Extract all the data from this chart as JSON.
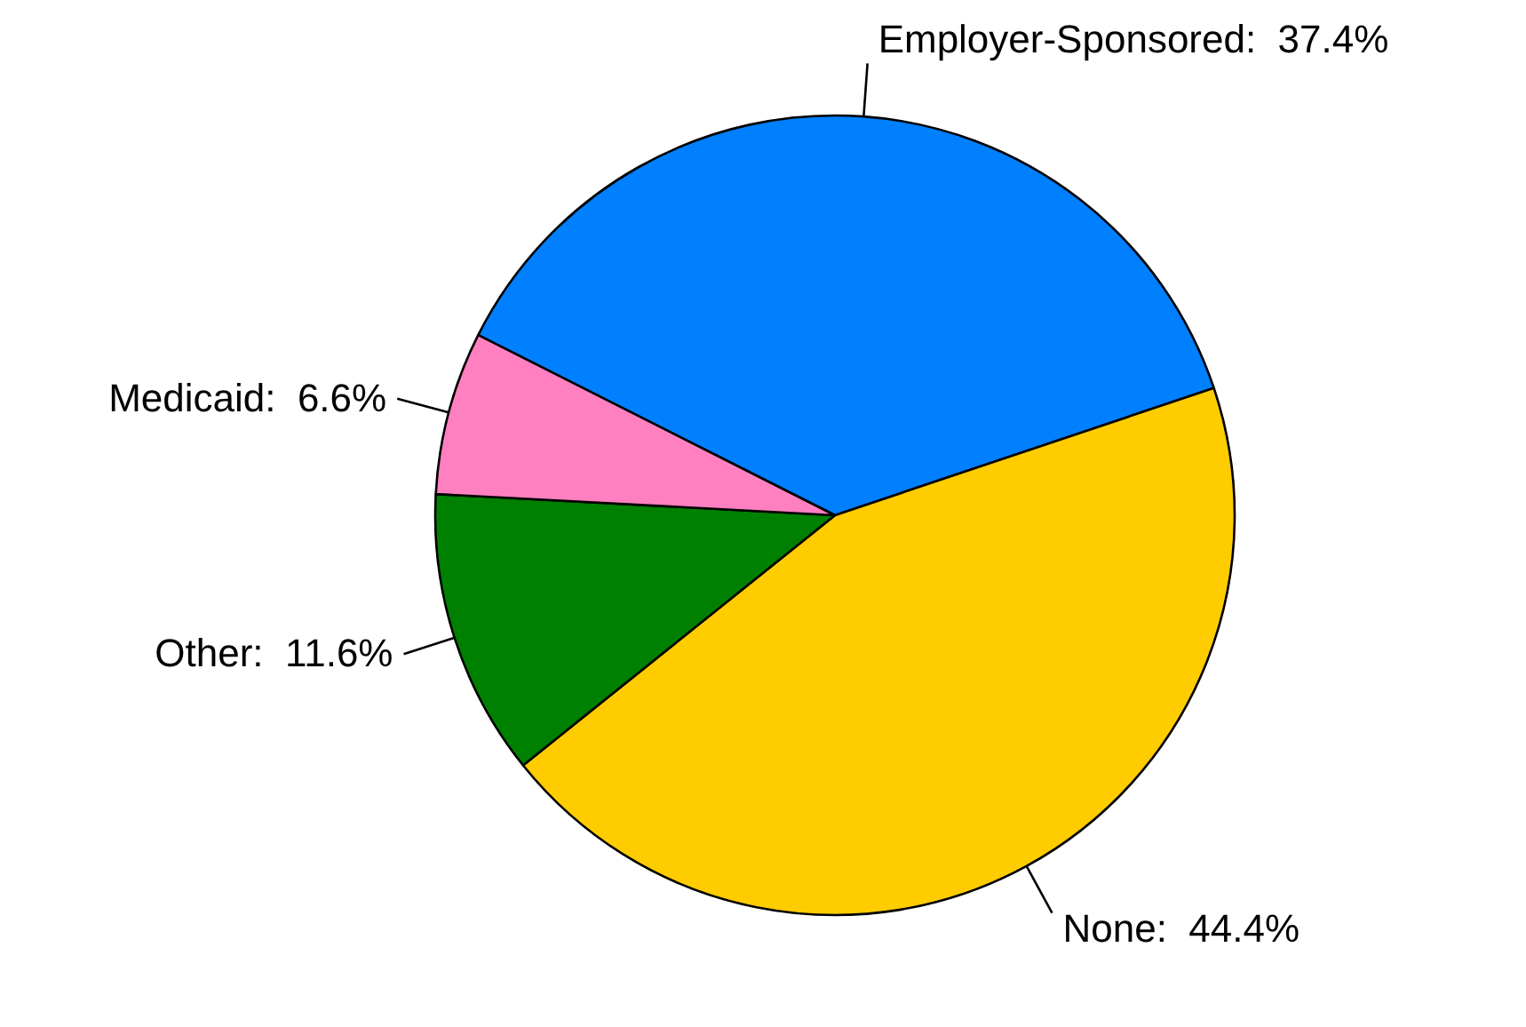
{
  "chart_data": {
    "type": "pie",
    "categories": [
      "Employer-Sponsored",
      "None",
      "Other",
      "Medicaid"
    ],
    "values": [
      37.4,
      44.4,
      11.6,
      6.6
    ],
    "value_labels": [
      "37.4%",
      "44.4%",
      "11.6%",
      "6.6%"
    ],
    "colors": [
      "#0080ff",
      "#ffcc00",
      "#008000",
      "#ff80c0"
    ]
  }
}
